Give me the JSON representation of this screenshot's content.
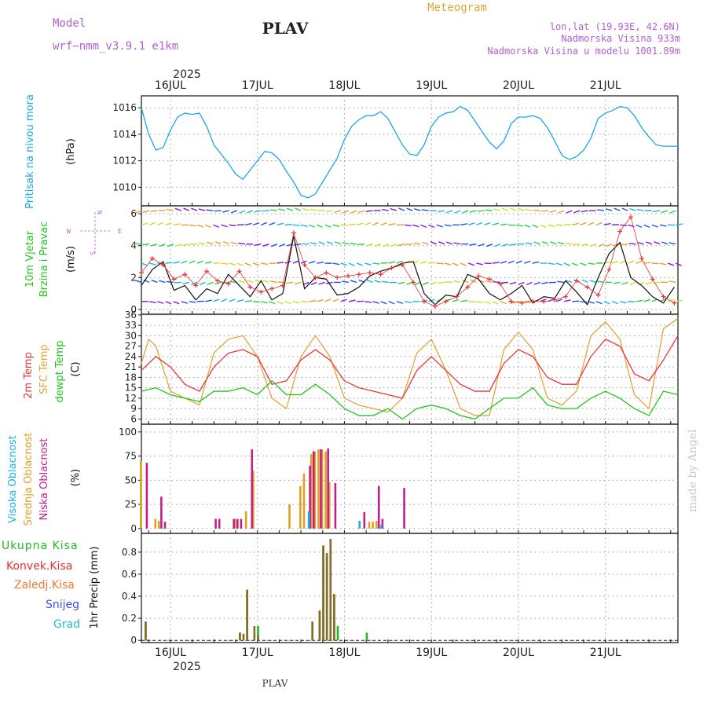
{
  "header": {
    "model_label": "Model",
    "model_name": "wrf−nmm_v3.9.1 e1km",
    "title": "PLAV",
    "meteogram": "Meteogram",
    "lonlat": "lon,lat (19.93E, 42.6N)",
    "elev": "Nadmorska Visina 933m",
    "elev_model": "Nadmorska Visina u modelu 1001.89m",
    "year": "2025",
    "footer": "PLAV",
    "credit": "made by Angel"
  },
  "colors": {
    "pressure": "#1aa7e8",
    "t2m": "#e8373a",
    "sfc": "#e0a63a",
    "dew": "#22c41e",
    "high_cloud": "#1ab2e6",
    "mid_cloud": "#e0a020",
    "low_cloud": "#c0208e",
    "total_precip": "#22b822",
    "conv_precip": "#e83030",
    "frz_precip": "#f07830",
    "snow": "#4a4ae0",
    "hail": "#20c0c0",
    "title_purple": "#b060d0"
  },
  "chart_data": [
    {
      "type": "line",
      "panel": "pressure",
      "ylabel": [
        "Pritisak na nivou mora",
        "(hPa)"
      ],
      "x_tick_labels": [
        "16JUL",
        "17JUL",
        "18JUL",
        "19JUL",
        "20JUL",
        "21JUL"
      ],
      "ylim": [
        1008.6,
        1016.9
      ],
      "yticks": [
        1010,
        1012,
        1014,
        1016
      ],
      "grid": true,
      "series": [
        {
          "name": "",
          "x": [
            0,
            2,
            4,
            6,
            8,
            10,
            12,
            14,
            16,
            18,
            20,
            22,
            24,
            26,
            28,
            30,
            32,
            34,
            36,
            38,
            40,
            42,
            44,
            46,
            48,
            50,
            52,
            54,
            56,
            58,
            60,
            62,
            64,
            66,
            68,
            70,
            72,
            74,
            76,
            78,
            80,
            82,
            84,
            86,
            88,
            90,
            92,
            94,
            96,
            98,
            100,
            102,
            104,
            106,
            108,
            110,
            112,
            114,
            116,
            118,
            120,
            122,
            124,
            126,
            128,
            130,
            132,
            134,
            136,
            138,
            140,
            142,
            144,
            146,
            148
          ],
          "y": [
            1016,
            1014,
            1012.8,
            1013,
            1014.3,
            1015.3,
            1015.6,
            1015.5,
            1015.6,
            1014.6,
            1013.2,
            1012.5,
            1011.8,
            1011,
            1010.6,
            1011.3,
            1012,
            1012.7,
            1012.6,
            1012.1,
            1011.2,
            1010.4,
            1009.4,
            1009.2,
            1009.5,
            1010.4,
            1011.3,
            1012.2,
            1013.6,
            1014.6,
            1015.1,
            1015.4,
            1015.4,
            1015.7,
            1015.2,
            1014.2,
            1013.2,
            1012.5,
            1012.4,
            1013.2,
            1014.6,
            1015.3,
            1015.6,
            1015.7,
            1016.1,
            1015.8,
            1015,
            1014.2,
            1013.4,
            1012.9,
            1013.5,
            1014.8,
            1015.3,
            1015.3,
            1015.4,
            1015.2,
            1014.5,
            1013.5,
            1012.4,
            1012.1,
            1012.3,
            1012.8,
            1013.7,
            1015.2,
            1015.6,
            1015.8,
            1016.1,
            1016,
            1015.4,
            1014.5,
            1013.8,
            1013.2,
            1013.1,
            1013.1,
            1013.1
          ]
        }
      ]
    },
    {
      "type": "line",
      "panel": "wind",
      "ylabel": [
        "10m Vjetar",
        "Brzina i Pravac",
        "(m/s)"
      ],
      "compass": [
        "N",
        "W",
        "E",
        "S"
      ],
      "ylim": [
        -0.3,
        6.5
      ],
      "yticks": [
        0,
        2,
        4,
        6
      ],
      "grid": true,
      "series": [
        {
          "name": "speed",
          "x": [
            0,
            3,
            6,
            9,
            12,
            15,
            18,
            21,
            24,
            27,
            30,
            33,
            36,
            39,
            42,
            45,
            48,
            51,
            54,
            57,
            60,
            63,
            66,
            69,
            72,
            75,
            78,
            81,
            84,
            87,
            90,
            93,
            96,
            99,
            102,
            105,
            108,
            111,
            114,
            117,
            120,
            123,
            126,
            129,
            132,
            135,
            138,
            141,
            144,
            147
          ],
          "y": [
            1.5,
            2.5,
            3,
            1.2,
            1.5,
            0.6,
            1.3,
            1,
            2.2,
            1.5,
            0.8,
            1.8,
            0.6,
            1,
            4.6,
            1.3,
            2,
            1.9,
            0.9,
            1,
            1.4,
            2.1,
            2.4,
            2.6,
            2.9,
            3,
            1,
            0.3,
            0.9,
            0.8,
            2.2,
            1.9,
            1,
            0.6,
            1,
            1.5,
            0.4,
            0.8,
            0.7,
            1.8,
            1.1,
            0.3,
            2,
            3.5,
            4.2,
            2,
            1.5,
            0.8,
            0.4,
            1.4
          ]
        },
        {
          "name": "gust",
          "x": [
            0,
            3,
            6,
            9,
            12,
            15,
            18,
            21,
            24,
            27,
            30,
            33,
            36,
            39,
            42,
            45,
            48,
            51,
            54,
            57,
            60,
            63,
            66,
            69,
            72,
            75,
            78,
            81,
            84,
            87,
            90,
            93,
            96,
            99,
            102,
            105,
            108,
            111,
            114,
            117,
            120,
            123,
            126,
            129,
            132,
            135,
            138,
            141,
            144,
            147
          ],
          "y": [
            2.3,
            3.2,
            2.8,
            1.9,
            2.2,
            1.5,
            2.4,
            1.8,
            1.6,
            2.4,
            1.4,
            1.1,
            1.3,
            1.5,
            4.8,
            2.8,
            2,
            2.3,
            2,
            2.1,
            2.2,
            2.3,
            2.2,
            2.6,
            2.8,
            1.7,
            0.5,
            0.2,
            0.5,
            0.8,
            1.4,
            2.1,
            1.9,
            1.6,
            0.5,
            0.4,
            0.5,
            0.5,
            0.6,
            0.8,
            1.8,
            1.4,
            0.9,
            2.5,
            4.9,
            5.8,
            3.2,
            1.9,
            0.8,
            0.4
          ]
        }
      ]
    },
    {
      "type": "line",
      "panel": "temperature",
      "ylabel": [
        "2m Temp",
        "SFC Temp",
        "dewpt Temp",
        "(C)"
      ],
      "ylim": [
        4.5,
        36.2
      ],
      "yticks": [
        6,
        9,
        12,
        15,
        18,
        21,
        24,
        27,
        30,
        33,
        36
      ],
      "grid": true,
      "series": [
        {
          "name": "2m Temp",
          "x": [
            0,
            4,
            8,
            12,
            16,
            20,
            24,
            28,
            32,
            36,
            40,
            44,
            48,
            52,
            56,
            60,
            64,
            68,
            72,
            76,
            80,
            84,
            88,
            92,
            96,
            100,
            104,
            108,
            112,
            116,
            120,
            124,
            128,
            132,
            136,
            140,
            144,
            148
          ],
          "y": [
            20,
            24,
            21,
            16,
            14,
            21,
            25,
            26,
            24,
            16,
            17,
            23,
            26,
            23,
            17,
            15,
            14,
            13,
            12,
            20,
            24,
            20,
            16,
            14,
            14,
            22,
            26,
            24,
            18,
            16,
            16,
            24,
            29,
            27,
            19,
            17,
            23,
            30
          ]
        },
        {
          "name": "SFC Temp",
          "x": [
            0,
            2,
            4,
            8,
            12,
            16,
            20,
            24,
            28,
            32,
            36,
            40,
            44,
            48,
            52,
            56,
            60,
            64,
            68,
            72,
            76,
            80,
            84,
            88,
            92,
            96,
            100,
            104,
            108,
            112,
            116,
            120,
            124,
            128,
            132,
            136,
            140,
            144,
            148
          ],
          "y": [
            22,
            29,
            27,
            14,
            12,
            10,
            25,
            29,
            30,
            24,
            12,
            9,
            24,
            30,
            24,
            12,
            10,
            9,
            8,
            12,
            25,
            29,
            20,
            9,
            7,
            7,
            26,
            31,
            26,
            12,
            10,
            14,
            30,
            34,
            29,
            13,
            9,
            32,
            35
          ]
        },
        {
          "name": "dewpt Temp",
          "x": [
            0,
            4,
            8,
            12,
            16,
            20,
            24,
            28,
            32,
            36,
            40,
            44,
            48,
            52,
            56,
            60,
            64,
            68,
            72,
            76,
            80,
            84,
            88,
            92,
            96,
            100,
            104,
            108,
            112,
            116,
            120,
            124,
            128,
            132,
            136,
            140,
            144,
            148
          ],
          "y": [
            14,
            15,
            13,
            12,
            11,
            14,
            14,
            15,
            13,
            17,
            13,
            13,
            16,
            13,
            9,
            7,
            7,
            9,
            6,
            9,
            10,
            9,
            7,
            6,
            9,
            12,
            12,
            15,
            10,
            9,
            9,
            12,
            14,
            12,
            9,
            7,
            14,
            13
          ]
        }
      ]
    },
    {
      "type": "bar",
      "panel": "clouds",
      "ylabel": [
        "Visoka Oblacnost",
        "Srednja Oblacnost",
        "Niska Oblacnost",
        "(%)"
      ],
      "ylim": [
        -5,
        108
      ],
      "yticks": [
        0,
        25,
        50,
        75,
        100
      ],
      "grid": true,
      "series": [
        {
          "name": "Visoka Oblacnost",
          "x": [
            46,
            60,
            66
          ],
          "values": [
            18,
            8,
            4
          ]
        },
        {
          "name": "Srednja Oblacnost",
          "x": [
            0,
            4,
            5,
            26,
            29,
            31,
            41,
            44,
            45,
            47,
            48,
            49,
            50,
            51,
            52,
            63,
            64,
            65
          ],
          "values": [
            70,
            10,
            8,
            10,
            18,
            60,
            25,
            44,
            57,
            77,
            80,
            82,
            82,
            80,
            48,
            7,
            7,
            8
          ]
        },
        {
          "name": "Niska Oblacnost",
          "x": [
            1,
            5,
            6,
            20,
            21,
            25,
            26,
            27,
            30,
            46,
            47,
            49,
            51,
            53,
            61,
            65,
            66,
            72
          ],
          "values": [
            68,
            33,
            7,
            10,
            10,
            10,
            10,
            10,
            82,
            65,
            80,
            82,
            83,
            47,
            17,
            44,
            10,
            42
          ]
        }
      ]
    },
    {
      "type": "bar",
      "panel": "precipitation",
      "ylabel": [
        "1hr Precip (mm)"
      ],
      "legend": [
        "Ukupna Kisa",
        "Konvek.Kisa",
        "Zaledj.Kisa",
        "Snijeg",
        "Grad"
      ],
      "ylim": [
        -0.02,
        0.97
      ],
      "yticks": [
        0,
        0.2,
        0.4,
        0.6,
        0.8
      ],
      "grid": true,
      "series": [
        {
          "name": "Ukupna Kisa",
          "x": [
            1,
            27,
            29,
            32,
            47,
            49,
            50,
            51,
            52,
            53,
            54,
            62
          ],
          "values": [
            0.17,
            0.07,
            0.46,
            0.13,
            0.17,
            0.27,
            0.86,
            0.79,
            0.92,
            0.42,
            0.13,
            0.07
          ]
        },
        {
          "name": "Konvek.Kisa",
          "x": [
            1,
            27,
            28,
            29,
            31,
            32,
            47,
            49,
            50,
            51,
            52,
            53
          ],
          "values": [
            0.17,
            0.07,
            0.06,
            0.46,
            0.13,
            0.05,
            0.17,
            0.27,
            0.86,
            0.79,
            0.92,
            0.42
          ]
        }
      ]
    }
  ]
}
